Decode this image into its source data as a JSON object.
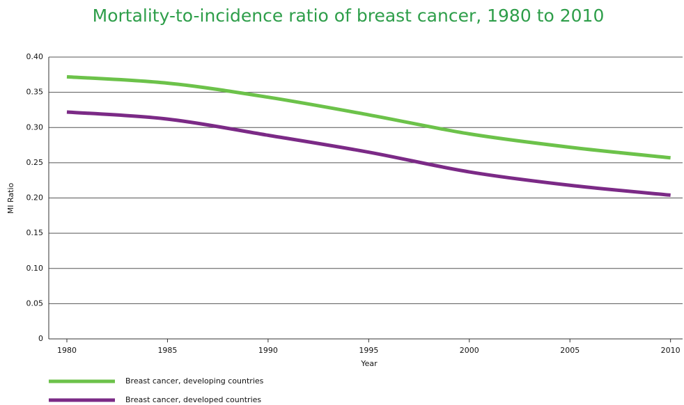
{
  "chart_data": {
    "type": "line",
    "title": "Mortality-to-incidence ratio of breast cancer, 1980 to 2010",
    "xlabel": "Year",
    "ylabel": "MI Ratio",
    "x": [
      1980,
      1985,
      1990,
      1995,
      2000,
      2005,
      2010
    ],
    "series": [
      {
        "name": "Breast cancer, developing countries",
        "color": "#6cc24a",
        "values": [
          0.372,
          0.363,
          0.343,
          0.318,
          0.291,
          0.272,
          0.257
        ]
      },
      {
        "name": "Breast cancer, developed countries",
        "color": "#7b2a86",
        "values": [
          0.322,
          0.312,
          0.289,
          0.265,
          0.237,
          0.218,
          0.204
        ]
      }
    ],
    "xlim": [
      1979.1,
      2010.6
    ],
    "xticks": [
      1980,
      1985,
      1990,
      1995,
      2000,
      2005,
      2010
    ],
    "ylim": [
      0,
      0.4
    ],
    "yticks": [
      0,
      0.05,
      {
        "value": 0.1,
        "label": "0.10"
      },
      0.15,
      {
        "value": 0.2,
        "label": "0.20"
      },
      0.25,
      {
        "value": 0.3,
        "label": "0.30"
      },
      0.35,
      {
        "value": 0.4,
        "label": "0.40"
      }
    ],
    "grid": true,
    "legend": "bottom-left"
  }
}
